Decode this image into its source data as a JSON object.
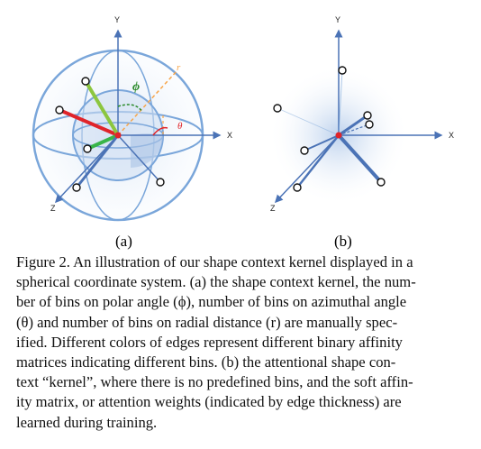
{
  "figure": {
    "panel_a": {
      "axis_labels": {
        "x": "X",
        "y": "Y",
        "z": "Z"
      },
      "annotations": {
        "phi": "ϕ",
        "theta": "θ",
        "r": "r"
      },
      "sublabel": "(a)"
    },
    "panel_b": {
      "axis_labels": {
        "x": "X",
        "y": "Y",
        "z": "Z"
      },
      "sublabel": "(b)"
    },
    "caption_lines": [
      "Figure 2. An illustration of our shape context kernel displayed in a",
      "spherical coordinate system. (a) the shape context kernel, the num-",
      "ber of bins on polar angle (ϕ), number of bins on azimuthal angle",
      "(θ) and number of bins on radial distance (r) are manually spec-",
      "ified. Different colors of edges represent different binary affinity",
      "matrices indicating different bins. (b) the attentional shape con-",
      "text “kernel”, where there is no predefined bins, and the soft affin-",
      "ity matrix, or attention weights (indicated by edge thickness) are",
      "learned during training."
    ]
  },
  "colors": {
    "sphere": "#7aa6da",
    "axis": "#4b73b6",
    "edge_red": "#e0242a",
    "edge_green": "#39b54a",
    "edge_lightgreen": "#8cc63f",
    "edge_blue": "#4b73b6",
    "r_line": "#f7a54a",
    "theta": "#e0242a",
    "phi": "#2a8a2a"
  }
}
